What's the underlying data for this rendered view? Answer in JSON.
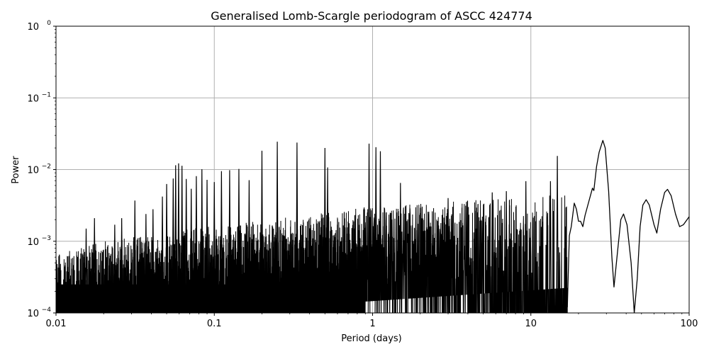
{
  "chart_data": {
    "type": "line",
    "title": "Generalised Lomb-Scargle periodogram of ASCC 424774",
    "xlabel": "Period (days)",
    "ylabel": "Power",
    "xscale": "log",
    "yscale": "log",
    "xlim": [
      0.01,
      100
    ],
    "ylim": [
      0.0001,
      1
    ],
    "grid": true,
    "legend": null,
    "line_color": "#000000",
    "grid_color": "#b0b0b0",
    "x_ticks": [
      {
        "value": 0.01,
        "label": "0.01"
      },
      {
        "value": 0.1,
        "label": "0.1"
      },
      {
        "value": 1,
        "label": "1"
      },
      {
        "value": 10,
        "label": "10"
      },
      {
        "value": 100,
        "label": "100"
      }
    ],
    "y_ticks": [
      {
        "value": 1,
        "base": "10",
        "exp": "0"
      },
      {
        "value": 0.1,
        "base": "10",
        "exp": "−1"
      },
      {
        "value": 0.01,
        "base": "10",
        "exp": "−2"
      },
      {
        "value": 0.001,
        "base": "10",
        "exp": "−3"
      },
      {
        "value": 0.0001,
        "base": "10",
        "exp": "−4"
      }
    ],
    "noise_envelope": {
      "description": "Dense noisy forest below 1 day; upper envelope of typical values",
      "points": [
        [
          0.01,
          0.0004
        ],
        [
          0.015,
          0.0005
        ],
        [
          0.02,
          0.0006
        ],
        [
          0.05,
          0.0008
        ],
        [
          0.1,
          0.001
        ],
        [
          0.2,
          0.0012
        ],
        [
          0.5,
          0.0015
        ],
        [
          0.9,
          0.0018
        ]
      ]
    },
    "notable_peaks": [
      {
        "period": 0.0105,
        "power": 0.00065
      },
      {
        "period": 0.0155,
        "power": 0.0015
      },
      {
        "period": 0.0175,
        "power": 0.0021
      },
      {
        "period": 0.0235,
        "power": 0.0017
      },
      {
        "period": 0.026,
        "power": 0.0021
      },
      {
        "period": 0.0315,
        "power": 0.0037
      },
      {
        "period": 0.037,
        "power": 0.0024
      },
      {
        "period": 0.041,
        "power": 0.0028
      },
      {
        "period": 0.047,
        "power": 0.0042
      },
      {
        "period": 0.05,
        "power": 0.0063
      },
      {
        "period": 0.055,
        "power": 0.0075
      },
      {
        "period": 0.057,
        "power": 0.0115
      },
      {
        "period": 0.0595,
        "power": 0.0122
      },
      {
        "period": 0.0625,
        "power": 0.0113
      },
      {
        "period": 0.0665,
        "power": 0.0074
      },
      {
        "period": 0.0715,
        "power": 0.0054
      },
      {
        "period": 0.077,
        "power": 0.0081
      },
      {
        "period": 0.0835,
        "power": 0.0101
      },
      {
        "period": 0.09,
        "power": 0.0072
      },
      {
        "period": 0.1,
        "power": 0.0067
      },
      {
        "period": 0.111,
        "power": 0.0095
      },
      {
        "period": 0.125,
        "power": 0.0098
      },
      {
        "period": 0.143,
        "power": 0.0102
      },
      {
        "period": 0.166,
        "power": 0.0071
      },
      {
        "period": 0.2,
        "power": 0.0183
      },
      {
        "period": 0.25,
        "power": 0.0245
      },
      {
        "period": 0.333,
        "power": 0.0238
      },
      {
        "period": 0.5,
        "power": 0.02
      },
      {
        "period": 0.52,
        "power": 0.0107
      },
      {
        "period": 0.95,
        "power": 0.023
      },
      {
        "period": 1.05,
        "power": 0.0205
      },
      {
        "period": 1.12,
        "power": 0.018
      },
      {
        "period": 1.5,
        "power": 0.0065
      },
      {
        "period": 3.0,
        "power": 0.004
      },
      {
        "period": 5.7,
        "power": 0.0048
      },
      {
        "period": 7.0,
        "power": 0.005
      },
      {
        "period": 9.3,
        "power": 0.0069
      },
      {
        "period": 13.3,
        "power": 0.0069
      },
      {
        "period": 14.7,
        "power": 0.0155
      }
    ],
    "smooth_curve": [
      [
        17.0,
        0.00012
      ],
      [
        17.5,
        0.0012
      ],
      [
        18.0,
        0.0016
      ],
      [
        18.8,
        0.0034
      ],
      [
        19.4,
        0.0028
      ],
      [
        20.0,
        0.0019
      ],
      [
        20.6,
        0.0019
      ],
      [
        21.3,
        0.0016
      ],
      [
        22.0,
        0.0023
      ],
      [
        23.0,
        0.0033
      ],
      [
        24.5,
        0.0055
      ],
      [
        25.0,
        0.0051
      ],
      [
        26.0,
        0.011
      ],
      [
        27.0,
        0.0175
      ],
      [
        28.5,
        0.0255
      ],
      [
        29.5,
        0.02
      ],
      [
        31.0,
        0.005
      ],
      [
        32.5,
        0.0006
      ],
      [
        33.5,
        0.00023
      ],
      [
        35.0,
        0.0006
      ],
      [
        37.0,
        0.002
      ],
      [
        38.5,
        0.0024
      ],
      [
        40.5,
        0.0017
      ],
      [
        43.0,
        0.0005
      ],
      [
        45.0,
        0.0001
      ],
      [
        47.0,
        0.0003
      ],
      [
        49.0,
        0.0016
      ],
      [
        51.0,
        0.0032
      ],
      [
        53.5,
        0.0038
      ],
      [
        56.0,
        0.0032
      ],
      [
        60.0,
        0.0017
      ],
      [
        62.5,
        0.0013
      ],
      [
        66.0,
        0.0028
      ],
      [
        70.0,
        0.0048
      ],
      [
        73.0,
        0.0053
      ],
      [
        77.0,
        0.0043
      ],
      [
        82.0,
        0.0024
      ],
      [
        87.0,
        0.0016
      ],
      [
        92.0,
        0.0017
      ],
      [
        100.0,
        0.0022
      ]
    ]
  }
}
